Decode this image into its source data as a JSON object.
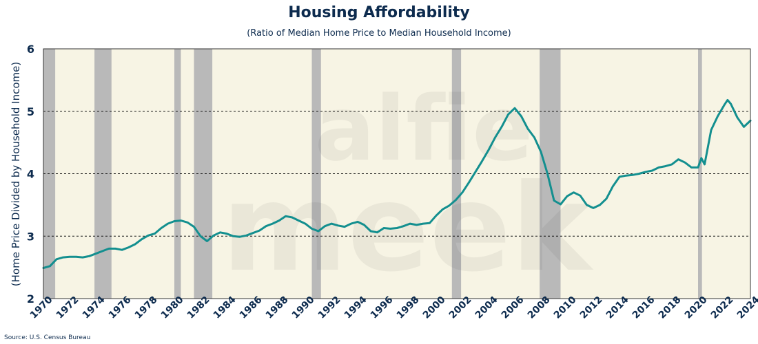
{
  "chart_data": {
    "type": "line",
    "title": "Housing Affordability",
    "subtitle": "(Ratio of Median Home Price to Median Household Income)",
    "xlabel": "",
    "ylabel": "(Home Price Divided by Household Income)",
    "source": "Source: U.S. Census Bureau",
    "xlim": [
      1970,
      2024
    ],
    "ylim": [
      2,
      6
    ],
    "y_ticks": [
      2,
      3,
      4,
      5,
      6
    ],
    "x_ticks": [
      1970,
      1972,
      1974,
      1976,
      1978,
      1980,
      1982,
      1984,
      1986,
      1988,
      1990,
      1992,
      1994,
      1996,
      1998,
      2000,
      2002,
      2004,
      2006,
      2008,
      2010,
      2012,
      2014,
      2016,
      2018,
      2020,
      2022,
      2024
    ],
    "grid": "dashed horizontal at 3, 4, 5",
    "background_color": "#f7f4e4",
    "recession_color": "#b9b9b9",
    "line_color": "#138f8f",
    "recessions": [
      [
        1970.0,
        1970.9
      ],
      [
        1973.9,
        1975.2
      ],
      [
        1980.0,
        1980.5
      ],
      [
        1981.5,
        1982.9
      ],
      [
        1990.5,
        1991.2
      ],
      [
        2001.2,
        2001.9
      ],
      [
        2007.9,
        2009.5
      ],
      [
        2020.0,
        2020.3
      ]
    ],
    "series": [
      {
        "x": [
          1970.0,
          1970.5,
          1971.0,
          1971.5,
          1972.0,
          1972.5,
          1973.0,
          1973.5,
          1974.0,
          1974.5,
          1975.0,
          1975.5,
          1976.0,
          1976.5,
          1977.0,
          1977.5,
          1978.0,
          1978.5,
          1979.0,
          1979.5,
          1980.0,
          1980.5,
          1981.0,
          1981.5,
          1982.0,
          1982.5,
          1983.0,
          1983.5,
          1984.0,
          1984.5,
          1985.0,
          1985.5,
          1986.0,
          1986.5,
          1987.0,
          1987.5,
          1988.0,
          1988.5,
          1989.0,
          1989.5,
          1990.0,
          1990.5,
          1991.0,
          1991.5,
          1992.0,
          1992.5,
          1993.0,
          1993.5,
          1994.0,
          1994.5,
          1995.0,
          1995.5,
          1996.0,
          1996.5,
          1997.0,
          1997.5,
          1998.0,
          1998.5,
          1999.0,
          1999.5,
          2000.0,
          2000.5,
          2001.0,
          2001.5,
          2002.0,
          2002.5,
          2003.0,
          2003.5,
          2004.0,
          2004.5,
          2005.0,
          2005.5,
          2006.0,
          2006.5,
          2007.0,
          2007.5,
          2008.0,
          2008.5,
          2009.0,
          2009.5,
          2010.0,
          2010.5,
          2011.0,
          2011.5,
          2012.0,
          2012.5,
          2013.0,
          2013.5,
          2014.0,
          2014.5,
          2015.0,
          2015.5,
          2016.0,
          2016.5,
          2017.0,
          2017.5,
          2018.0,
          2018.5,
          2019.0,
          2019.5,
          2020.0,
          2020.25,
          2020.5,
          2021.0,
          2021.5,
          2022.0,
          2022.25,
          2022.5,
          2023.0,
          2023.5,
          2024.0
        ],
        "values": [
          2.49,
          2.52,
          2.63,
          2.66,
          2.67,
          2.67,
          2.66,
          2.68,
          2.72,
          2.76,
          2.8,
          2.8,
          2.78,
          2.82,
          2.87,
          2.95,
          3.01,
          3.04,
          3.13,
          3.2,
          3.24,
          3.25,
          3.22,
          3.15,
          3.0,
          2.92,
          3.01,
          3.06,
          3.04,
          3.0,
          2.99,
          3.01,
          3.05,
          3.09,
          3.16,
          3.2,
          3.25,
          3.32,
          3.3,
          3.25,
          3.2,
          3.12,
          3.08,
          3.16,
          3.2,
          3.17,
          3.15,
          3.2,
          3.23,
          3.18,
          3.08,
          3.06,
          3.13,
          3.12,
          3.13,
          3.16,
          3.2,
          3.18,
          3.2,
          3.21,
          3.33,
          3.43,
          3.49,
          3.58,
          3.7,
          3.86,
          4.03,
          4.2,
          4.38,
          4.58,
          4.75,
          4.95,
          5.05,
          4.92,
          4.72,
          4.58,
          4.35,
          4.0,
          3.57,
          3.51,
          3.64,
          3.7,
          3.65,
          3.5,
          3.45,
          3.5,
          3.6,
          3.8,
          3.95,
          3.97,
          3.98,
          4.0,
          4.03,
          4.05,
          4.1,
          4.12,
          4.15,
          4.23,
          4.18,
          4.1,
          4.1,
          4.25,
          4.15,
          4.7,
          4.92,
          5.1,
          5.18,
          5.12,
          4.9,
          4.75,
          4.85
        ]
      }
    ]
  },
  "watermark": {
    "line1": "alfie",
    "line2": "meek"
  }
}
